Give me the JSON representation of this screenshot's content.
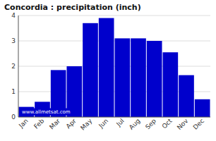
{
  "chart_data": {
    "type": "bar",
    "title": "Concordia : precipitation (inch)",
    "categories": [
      "Jan",
      "Feb",
      "Mar",
      "Apr",
      "May",
      "Jun",
      "Jul",
      "Aug",
      "Sep",
      "Oct",
      "Nov",
      "Dec"
    ],
    "values": [
      0.4,
      0.6,
      1.85,
      2.0,
      3.7,
      3.9,
      3.1,
      3.1,
      3.0,
      2.55,
      1.65,
      0.7
    ],
    "color": "#0000cc",
    "ylim": [
      0,
      4.0
    ],
    "yticks": [
      0,
      1,
      2,
      3,
      4
    ],
    "grid": true,
    "annotation": "www.allmetsat.com"
  }
}
